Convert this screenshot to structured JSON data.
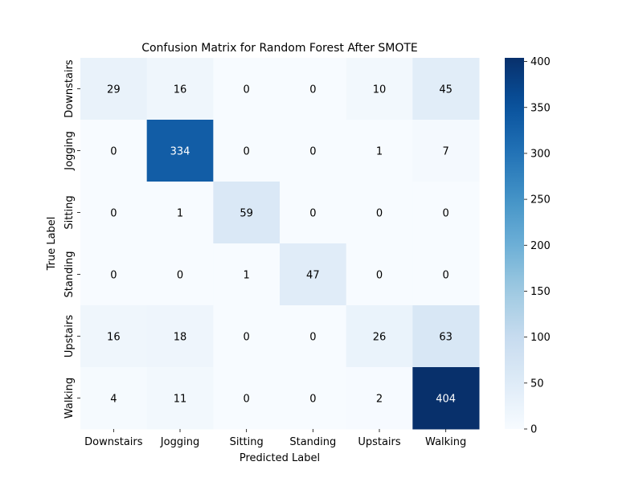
{
  "chart_data": {
    "type": "heatmap",
    "title": "Confusion Matrix for Random Forest After SMOTE",
    "xlabel": "Predicted Label",
    "ylabel": "True Label",
    "x_categories": [
      "Downstairs",
      "Jogging",
      "Sitting",
      "Standing",
      "Upstairs",
      "Walking"
    ],
    "y_categories": [
      "Downstairs",
      "Jogging",
      "Sitting",
      "Standing",
      "Upstairs",
      "Walking"
    ],
    "matrix": [
      [
        29,
        16,
        0,
        0,
        10,
        45
      ],
      [
        0,
        334,
        0,
        0,
        1,
        7
      ],
      [
        0,
        1,
        59,
        0,
        0,
        0
      ],
      [
        0,
        0,
        1,
        47,
        0,
        0
      ],
      [
        16,
        18,
        0,
        0,
        26,
        63
      ],
      [
        4,
        11,
        0,
        0,
        2,
        404
      ]
    ],
    "colorbar": {
      "min": 0,
      "max": 404,
      "ticks": [
        0,
        50,
        100,
        150,
        200,
        250,
        300,
        350,
        400
      ]
    },
    "colormap": "Blues",
    "colors": {
      "low": "#f7fbff",
      "high": "#08306b"
    }
  }
}
